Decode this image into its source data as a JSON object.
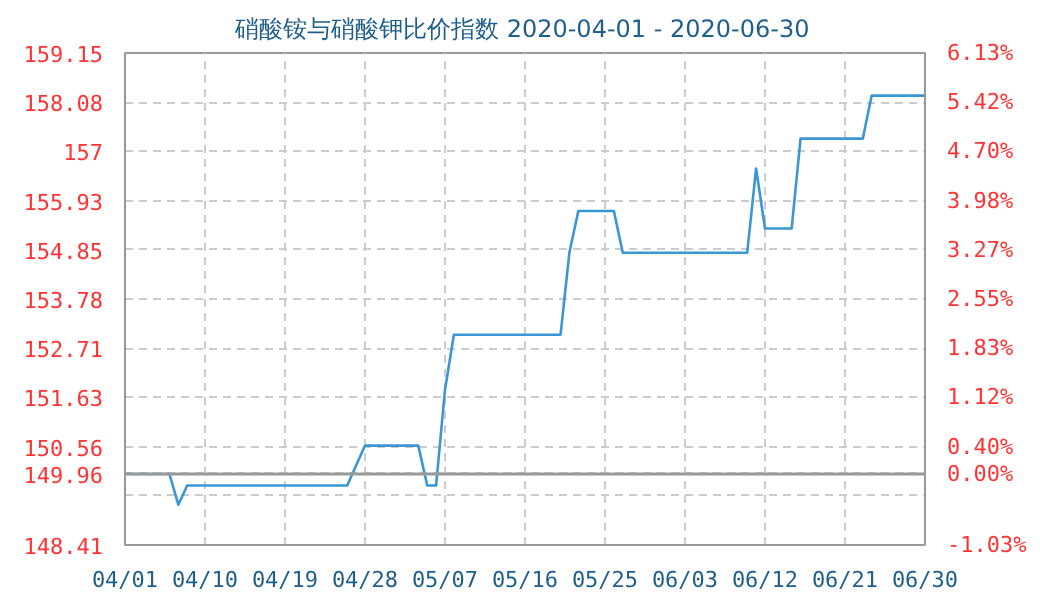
{
  "chart_data": {
    "type": "line",
    "title": "硝酸铵与硝酸钾比价指数 2020-04-01 - 2020-06-30",
    "series": [
      {
        "color": "#3a96d4",
        "x": [
          "2020-04-01",
          "2020-04-06",
          "2020-04-07",
          "2020-04-08",
          "2020-04-26",
          "2020-04-28",
          "2020-05-04",
          "2020-05-05",
          "2020-05-06",
          "2020-05-07",
          "2020-05-08",
          "2020-05-20",
          "2020-05-21",
          "2020-05-22",
          "2020-05-26",
          "2020-05-27",
          "2020-06-10",
          "2020-06-11",
          "2020-06-12",
          "2020-06-15",
          "2020-06-16",
          "2020-06-23",
          "2020-06-24",
          "2020-06-30"
        ],
        "values": [
          149.96,
          149.96,
          149.29,
          149.71,
          149.71,
          150.58,
          150.58,
          149.71,
          149.71,
          151.8,
          153.0,
          153.0,
          154.8,
          155.7,
          155.7,
          154.79,
          154.79,
          156.63,
          155.32,
          155.32,
          157.28,
          157.28,
          158.22,
          158.22
        ]
      }
    ],
    "xlim": [
      "2020-04-01",
      "2020-06-30"
    ],
    "xticks": [
      {
        "value": "2020-04-01",
        "label": "04/01"
      },
      {
        "value": "2020-04-10",
        "label": "04/10"
      },
      {
        "value": "2020-04-19",
        "label": "04/19"
      },
      {
        "value": "2020-04-28",
        "label": "04/28"
      },
      {
        "value": "2020-05-07",
        "label": "05/07"
      },
      {
        "value": "2020-05-16",
        "label": "05/16"
      },
      {
        "value": "2020-05-25",
        "label": "05/25"
      },
      {
        "value": "2020-06-03",
        "label": "06/03"
      },
      {
        "value": "2020-06-12",
        "label": "06/12"
      },
      {
        "value": "2020-06-21",
        "label": "06/21"
      },
      {
        "value": "2020-06-30",
        "label": "06/30"
      }
    ],
    "ylim": [
      148.41,
      159.15
    ],
    "yticks": [
      148.41,
      {
        "value": 149.49,
        "label": null
      },
      149.96,
      150.56,
      151.63,
      152.71,
      153.78,
      154.85,
      155.93,
      157,
      158.08,
      159.15
    ],
    "y2lim": [
      -1.03,
      6.13
    ],
    "y2ticks": [
      {
        "value": -1.03,
        "label": "-1.03%"
      },
      {
        "value": 0.0,
        "label": "0.00%"
      },
      {
        "value": 0.4,
        "label": "0.40%"
      },
      {
        "value": 1.12,
        "label": "1.12%"
      },
      {
        "value": 1.83,
        "label": "1.83%"
      },
      {
        "value": 2.55,
        "label": "2.55%"
      },
      {
        "value": 3.27,
        "label": "3.27%"
      },
      {
        "value": 3.98,
        "label": "3.98%"
      },
      {
        "value": 4.7,
        "label": "4.70%"
      },
      {
        "value": 5.42,
        "label": "5.42%"
      },
      {
        "value": 6.13,
        "label": "6.13%"
      }
    ],
    "ref_lines": [
      {
        "axis": "y",
        "value": 149.96,
        "color": "#999999",
        "line_style": "solid"
      }
    ],
    "grid": true
  }
}
